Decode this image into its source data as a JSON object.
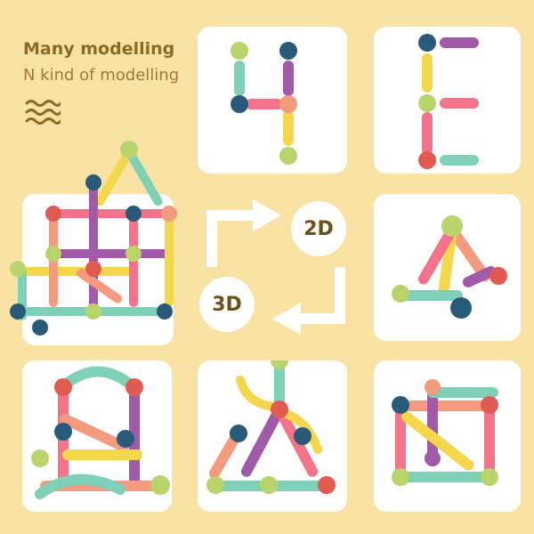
{
  "header": {
    "title": "Many modelling",
    "subtitle": "N kind of modelling"
  },
  "labels": {
    "two_d": "2D",
    "three_d": "3D"
  },
  "colors": {
    "background": "#f9e3a4",
    "panel": "#ffffff",
    "title_text": "#8a6a25",
    "stick_green": "#7ed0b6",
    "stick_pink": "#f2738a",
    "stick_yellow": "#f4d74a",
    "stick_purple": "#a05aa8",
    "stick_salmon": "#f49a7e",
    "ball_navy": "#2a5a7a",
    "ball_lime": "#b9d46a",
    "ball_red": "#e35a52"
  }
}
